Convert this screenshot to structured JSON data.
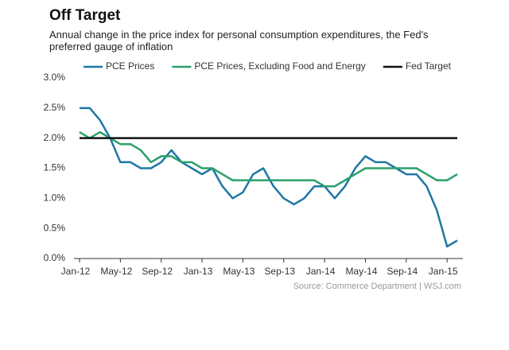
{
  "chart_data": {
    "type": "line",
    "title": "Off Target",
    "subtitle": "Annual change in the price index for personal consumption expenditures, the Fed's preferred gauge of inflation",
    "source": "Source: Commerce Department  |  WSJ.com",
    "categories": [
      "Jan-12",
      null,
      null,
      null,
      "May-12",
      null,
      null,
      null,
      "Sep-12",
      null,
      null,
      null,
      "Jan-13",
      null,
      null,
      null,
      "May-13",
      null,
      null,
      null,
      "Sep-13",
      null,
      null,
      null,
      "Jan-14",
      null,
      null,
      null,
      "May-14",
      null,
      null,
      null,
      "Sep-14",
      null,
      null,
      null,
      "Jan-15",
      null
    ],
    "series": [
      {
        "name": "PCE Prices",
        "color": "#1f77a4",
        "values": [
          2.5,
          2.5,
          2.3,
          2.0,
          1.6,
          1.6,
          1.5,
          1.5,
          1.6,
          1.8,
          1.6,
          1.5,
          1.4,
          1.5,
          1.2,
          1.0,
          1.1,
          1.4,
          1.5,
          1.2,
          1.0,
          0.9,
          1.0,
          1.2,
          1.2,
          1.0,
          1.2,
          1.5,
          1.7,
          1.6,
          1.6,
          1.5,
          1.4,
          1.4,
          1.2,
          0.8,
          0.2,
          0.3
        ]
      },
      {
        "name": "PCE Prices, Excluding Food and Energy",
        "color": "#2aa06a",
        "values": [
          2.1,
          2.0,
          2.1,
          2.0,
          1.9,
          1.9,
          1.8,
          1.6,
          1.7,
          1.7,
          1.6,
          1.6,
          1.5,
          1.5,
          1.4,
          1.3,
          1.3,
          1.3,
          1.3,
          1.3,
          1.3,
          1.3,
          1.3,
          1.3,
          1.2,
          1.2,
          1.3,
          1.4,
          1.5,
          1.5,
          1.5,
          1.5,
          1.5,
          1.5,
          1.4,
          1.3,
          1.3,
          1.4
        ]
      },
      {
        "name": "Fed Target",
        "color": "#111111",
        "values": [
          2.0,
          2.0,
          2.0,
          2.0,
          2.0,
          2.0,
          2.0,
          2.0,
          2.0,
          2.0,
          2.0,
          2.0,
          2.0,
          2.0,
          2.0,
          2.0,
          2.0,
          2.0,
          2.0,
          2.0,
          2.0,
          2.0,
          2.0,
          2.0,
          2.0,
          2.0,
          2.0,
          2.0,
          2.0,
          2.0,
          2.0,
          2.0,
          2.0,
          2.0,
          2.0,
          2.0,
          2.0,
          2.0
        ]
      }
    ],
    "ylim": [
      0,
      3
    ],
    "yticks": [
      {
        "value": 0,
        "label": "0.0%"
      },
      {
        "value": 0.5,
        "label": "0.5%"
      },
      {
        "value": 1,
        "label": "1.0%"
      },
      {
        "value": 1.5,
        "label": "1.5%"
      },
      {
        "value": 2,
        "label": "2.0%"
      },
      {
        "value": 2.5,
        "label": "2.5%"
      },
      {
        "value": 3,
        "label": "3.0%"
      }
    ],
    "grid": false
  }
}
